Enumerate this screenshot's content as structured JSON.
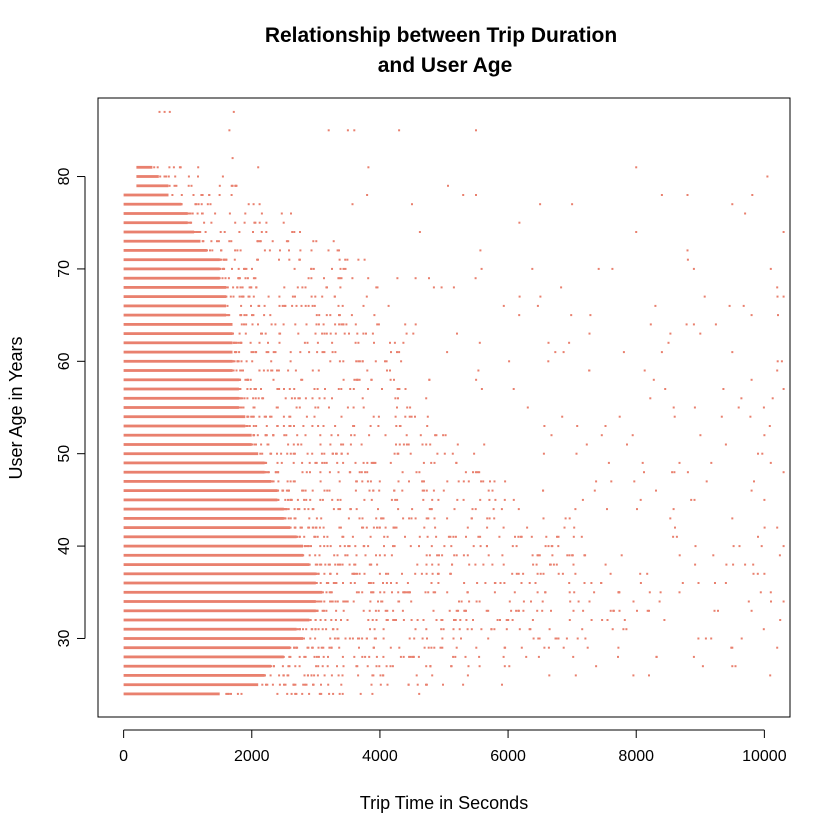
{
  "chart_data": {
    "type": "scatter",
    "title": "Relationship between Trip Duration and User Age",
    "title_lines": [
      "Relationship between Trip Duration",
      "and User Age"
    ],
    "xlabel": "Trip Time in Seconds",
    "ylabel": "User Age in Years",
    "xlim": [
      -400,
      10400
    ],
    "ylim": [
      21.5,
      88.5
    ],
    "x_ticks": [
      0,
      2000,
      4000,
      6000,
      8000,
      10000
    ],
    "y_ticks": [
      30,
      40,
      50,
      60,
      70,
      80
    ],
    "grid": false,
    "legend": "none",
    "point_color": "#E9806E",
    "ages": [
      24,
      25,
      26,
      27,
      28,
      29,
      30,
      31,
      32,
      33,
      34,
      35,
      36,
      37,
      38,
      39,
      40,
      41,
      42,
      43,
      44,
      45,
      46,
      47,
      48,
      49,
      50,
      51,
      52,
      53,
      54,
      55,
      56,
      57,
      58,
      59,
      60,
      61,
      62,
      63,
      64,
      65,
      66,
      67,
      68,
      69,
      70,
      71,
      72,
      73,
      74,
      75,
      76,
      77,
      78,
      79,
      80,
      81,
      85,
      87
    ],
    "dense_band_max_seconds": [
      1500,
      2100,
      2200,
      2300,
      2500,
      2600,
      2800,
      2700,
      2900,
      3000,
      3000,
      3100,
      3000,
      3000,
      2900,
      2800,
      2800,
      2700,
      2600,
      2500,
      2500,
      2400,
      2400,
      2300,
      2200,
      2200,
      2100,
      2000,
      2000,
      1900,
      1900,
      1800,
      1800,
      1800,
      1800,
      1700,
      1700,
      1700,
      1700,
      1700,
      1700,
      1600,
      1600,
      1600,
      1600,
      1500,
      1500,
      1500,
      1300,
      1200,
      1100,
      1000,
      1000,
      900,
      700,
      700,
      550,
      450,
      0,
      0
    ],
    "scattered_points": [
      {
        "x": 560,
        "y": 87
      },
      {
        "x": 640,
        "y": 87
      },
      {
        "x": 720,
        "y": 87
      },
      {
        "x": 1720,
        "y": 87
      },
      {
        "x": 1650,
        "y": 85
      },
      {
        "x": 3200,
        "y": 85
      },
      {
        "x": 3500,
        "y": 85
      },
      {
        "x": 3600,
        "y": 85
      },
      {
        "x": 4300,
        "y": 85
      },
      {
        "x": 5500,
        "y": 85
      },
      {
        "x": 1700,
        "y": 82
      },
      {
        "x": 2100,
        "y": 81
      },
      {
        "x": 8000,
        "y": 81
      },
      {
        "x": 1550,
        "y": 80
      },
      {
        "x": 1700,
        "y": 79
      },
      {
        "x": 1750,
        "y": 79
      },
      {
        "x": 8400,
        "y": 78
      },
      {
        "x": 8800,
        "y": 78
      },
      {
        "x": 5300,
        "y": 78
      },
      {
        "x": 5500,
        "y": 78
      },
      {
        "x": 3800,
        "y": 78
      },
      {
        "x": 6500,
        "y": 77
      },
      {
        "x": 7000,
        "y": 77
      },
      {
        "x": 9500,
        "y": 77
      },
      {
        "x": 4500,
        "y": 77
      },
      {
        "x": 9700,
        "y": 76
      },
      {
        "x": 10400,
        "y": 75
      },
      {
        "x": 10300,
        "y": 74
      },
      {
        "x": 8000,
        "y": 74
      },
      {
        "x": 8800,
        "y": 72
      },
      {
        "x": 10100,
        "y": 70
      },
      {
        "x": 8900,
        "y": 70
      },
      {
        "x": 10200,
        "y": 68
      },
      {
        "x": 8300,
        "y": 66
      },
      {
        "x": 10300,
        "y": 67
      },
      {
        "x": 9800,
        "y": 65
      },
      {
        "x": 10400,
        "y": 64
      },
      {
        "x": 8900,
        "y": 64
      },
      {
        "x": 9000,
        "y": 63
      },
      {
        "x": 8400,
        "y": 61
      },
      {
        "x": 9500,
        "y": 61
      },
      {
        "x": 10200,
        "y": 59
      },
      {
        "x": 9800,
        "y": 58
      },
      {
        "x": 10300,
        "y": 57
      },
      {
        "x": 9600,
        "y": 55
      },
      {
        "x": 8600,
        "y": 54
      },
      {
        "x": 10000,
        "y": 52
      },
      {
        "x": 9400,
        "y": 51
      },
      {
        "x": 9900,
        "y": 50
      },
      {
        "x": 10100,
        "y": 49
      },
      {
        "x": 10300,
        "y": 48
      },
      {
        "x": 9100,
        "y": 47
      },
      {
        "x": 9800,
        "y": 46
      },
      {
        "x": 10000,
        "y": 45
      },
      {
        "x": 9500,
        "y": 43
      },
      {
        "x": 10200,
        "y": 42
      },
      {
        "x": 9900,
        "y": 41
      },
      {
        "x": 10300,
        "y": 40
      },
      {
        "x": 9700,
        "y": 38
      },
      {
        "x": 10000,
        "y": 37
      },
      {
        "x": 9400,
        "y": 36
      },
      {
        "x": 10100,
        "y": 35
      },
      {
        "x": 10300,
        "y": 34
      },
      {
        "x": 9800,
        "y": 33
      },
      {
        "x": 8200,
        "y": 33
      },
      {
        "x": 7800,
        "y": 31
      },
      {
        "x": 9500,
        "y": 29
      },
      {
        "x": 10200,
        "y": 29
      },
      {
        "x": 8900,
        "y": 28
      },
      {
        "x": 9500,
        "y": 27
      },
      {
        "x": 8200,
        "y": 26
      },
      {
        "x": 3700,
        "y": 24
      }
    ]
  }
}
